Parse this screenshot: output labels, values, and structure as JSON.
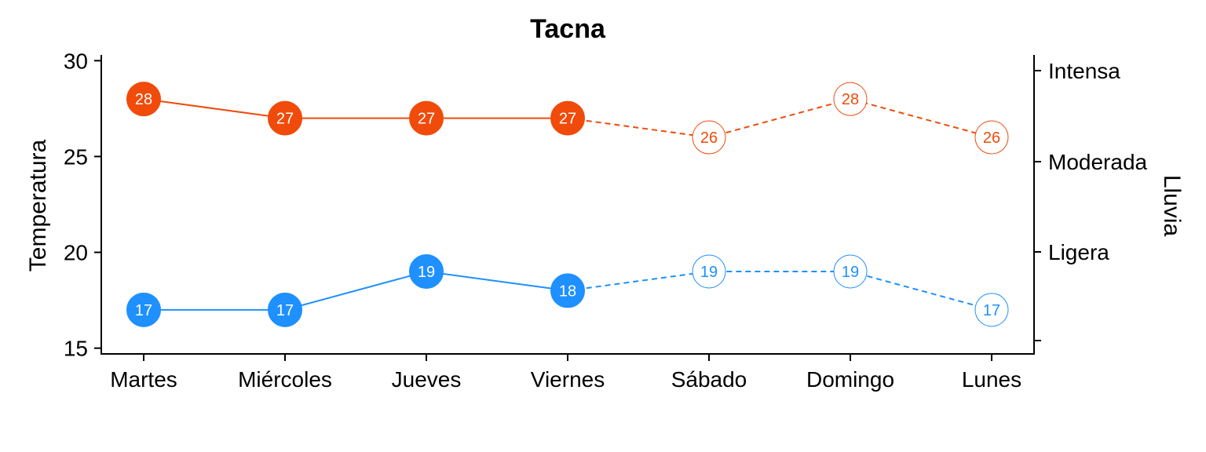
{
  "chart_data": {
    "type": "line",
    "title": "Tacna",
    "ylabel": "Temperatura",
    "y2label": "Lluvia",
    "categories": [
      "Martes",
      "Miércoles",
      "Jueves",
      "Viernes",
      "Sábado",
      "Domingo",
      "Lunes"
    ],
    "ylim": [
      14.7,
      30.3
    ],
    "yticks": [
      15,
      20,
      25,
      30
    ],
    "y2_tick_labels": [
      "",
      "Ligera",
      "Moderada",
      "Intensa"
    ],
    "observed_count": 4,
    "grid": false,
    "legend": "none",
    "series": [
      {
        "values": [
          28,
          27,
          27,
          27,
          26,
          28,
          26
        ],
        "color": "#F04B0B"
      },
      {
        "values": [
          17,
          17,
          19,
          18,
          19,
          19,
          17
        ],
        "color": "#1E90FF"
      }
    ]
  }
}
